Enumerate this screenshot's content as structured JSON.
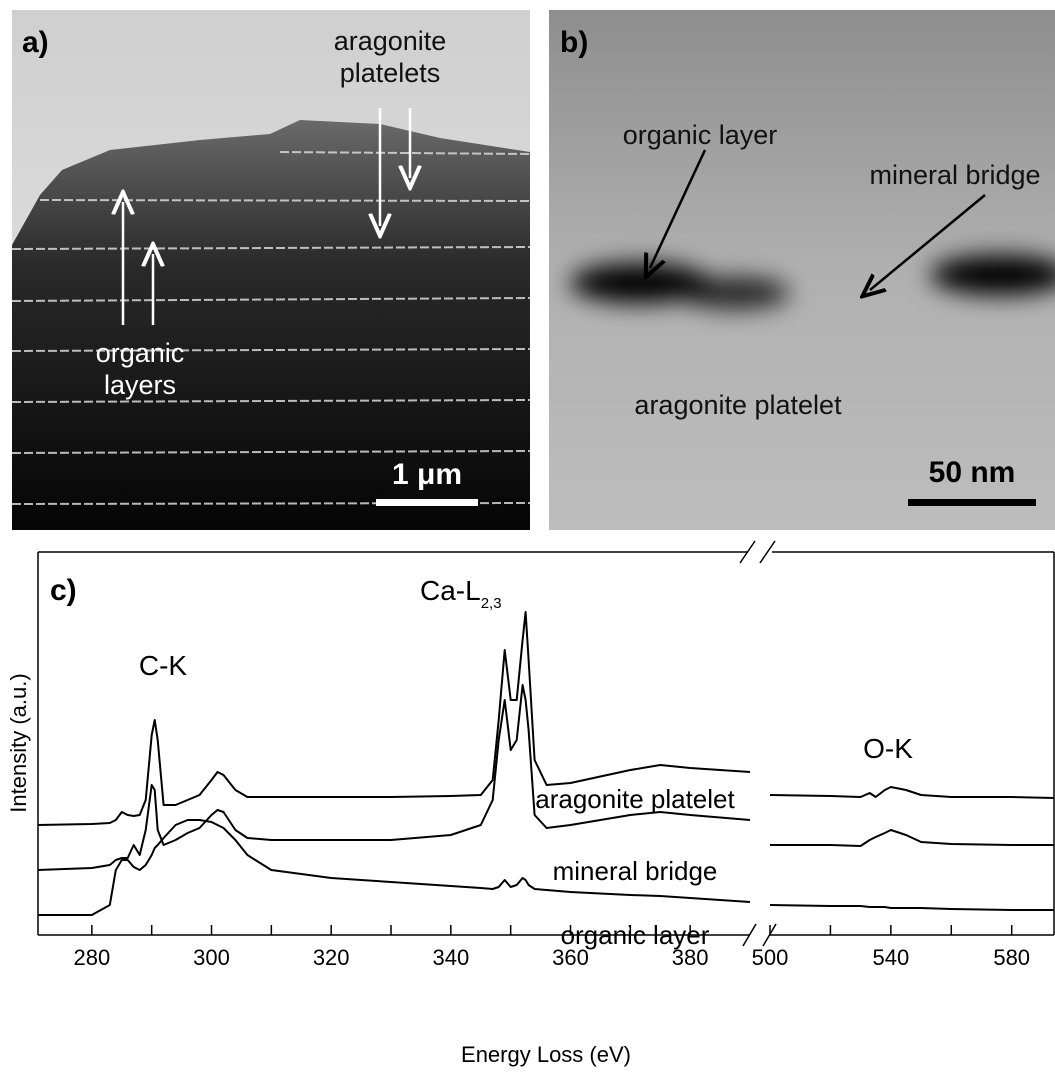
{
  "panels": [
    {
      "label": "a)",
      "annotations": [
        {
          "lines": [
            "aragonite",
            "platelets"
          ]
        },
        {
          "lines": [
            "organic",
            "layers"
          ]
        }
      ],
      "scale_bar": "1 μm"
    },
    {
      "label": "b)",
      "annotations": [
        "organic layer",
        "mineral bridge",
        "aragonite platelet"
      ],
      "scale_bar": "50 nm"
    }
  ],
  "chart_data": {
    "type": "line",
    "panel_label": "c)",
    "xlabel": "Energy Loss (eV)",
    "ylabel": "Intensity (a.u.)",
    "annotations": [
      "C-K",
      {
        "text": "Ca-L",
        "sub": "2,3"
      },
      "O-K"
    ],
    "x": [
      271,
      280,
      283,
      284,
      285,
      286,
      287,
      288,
      289,
      290,
      290.5,
      291,
      292,
      294,
      296,
      298,
      300,
      301,
      302,
      304,
      306,
      310,
      320,
      330,
      340,
      345,
      347,
      348,
      349,
      350,
      351,
      352,
      352.5,
      353,
      354,
      356,
      360,
      370,
      375,
      380,
      390,
      500,
      520,
      530,
      533,
      535,
      538,
      540,
      545,
      550,
      560,
      580,
      594
    ],
    "xlim": [
      271,
      594
    ],
    "xbreak": [
      390,
      500
    ],
    "xticks": [
      280,
      300,
      320,
      340,
      360,
      380,
      500,
      540,
      580
    ],
    "xminorticks": [
      290,
      310,
      330,
      350,
      370,
      520,
      560
    ],
    "ylim": [
      0,
      383
    ],
    "series": [
      {
        "name": "aragonite platelet",
        "color": "#000000",
        "values": [
          110,
          111,
          112,
          115,
          123,
          120,
          119,
          120,
          135,
          200,
          215,
          195,
          130,
          130,
          135,
          140,
          155,
          163,
          160,
          145,
          138,
          138,
          138,
          138,
          139,
          140,
          155,
          215,
          285,
          235,
          235,
          295,
          323,
          275,
          175,
          150,
          152,
          165,
          170,
          167,
          163,
          140,
          139,
          138,
          142,
          138,
          145,
          148,
          145,
          140,
          138,
          138,
          137
        ]
      },
      {
        "name": "mineral bridge",
        "color": "#000000",
        "values": [
          65,
          67,
          70,
          75,
          77,
          77,
          90,
          80,
          105,
          150,
          145,
          105,
          90,
          95,
          102,
          107,
          120,
          125,
          123,
          105,
          97,
          95,
          95,
          95,
          100,
          110,
          135,
          195,
          235,
          185,
          195,
          250,
          235,
          205,
          120,
          107,
          110,
          120,
          123,
          120,
          115,
          90,
          90,
          89,
          95,
          98,
          102,
          105,
          100,
          93,
          91,
          90,
          90
        ]
      },
      {
        "name": "organic layer",
        "color": "#000000",
        "values": [
          20,
          20,
          30,
          65,
          75,
          75,
          68,
          65,
          70,
          80,
          87,
          90,
          97,
          110,
          115,
          115,
          113,
          110,
          107,
          95,
          80,
          65,
          57,
          53,
          49,
          47,
          46,
          48,
          55,
          48,
          50,
          57,
          55,
          50,
          46,
          45,
          43,
          40,
          39,
          37,
          33,
          30,
          29,
          29,
          28,
          28,
          28,
          27,
          27,
          27,
          26,
          25,
          25
        ]
      }
    ]
  }
}
